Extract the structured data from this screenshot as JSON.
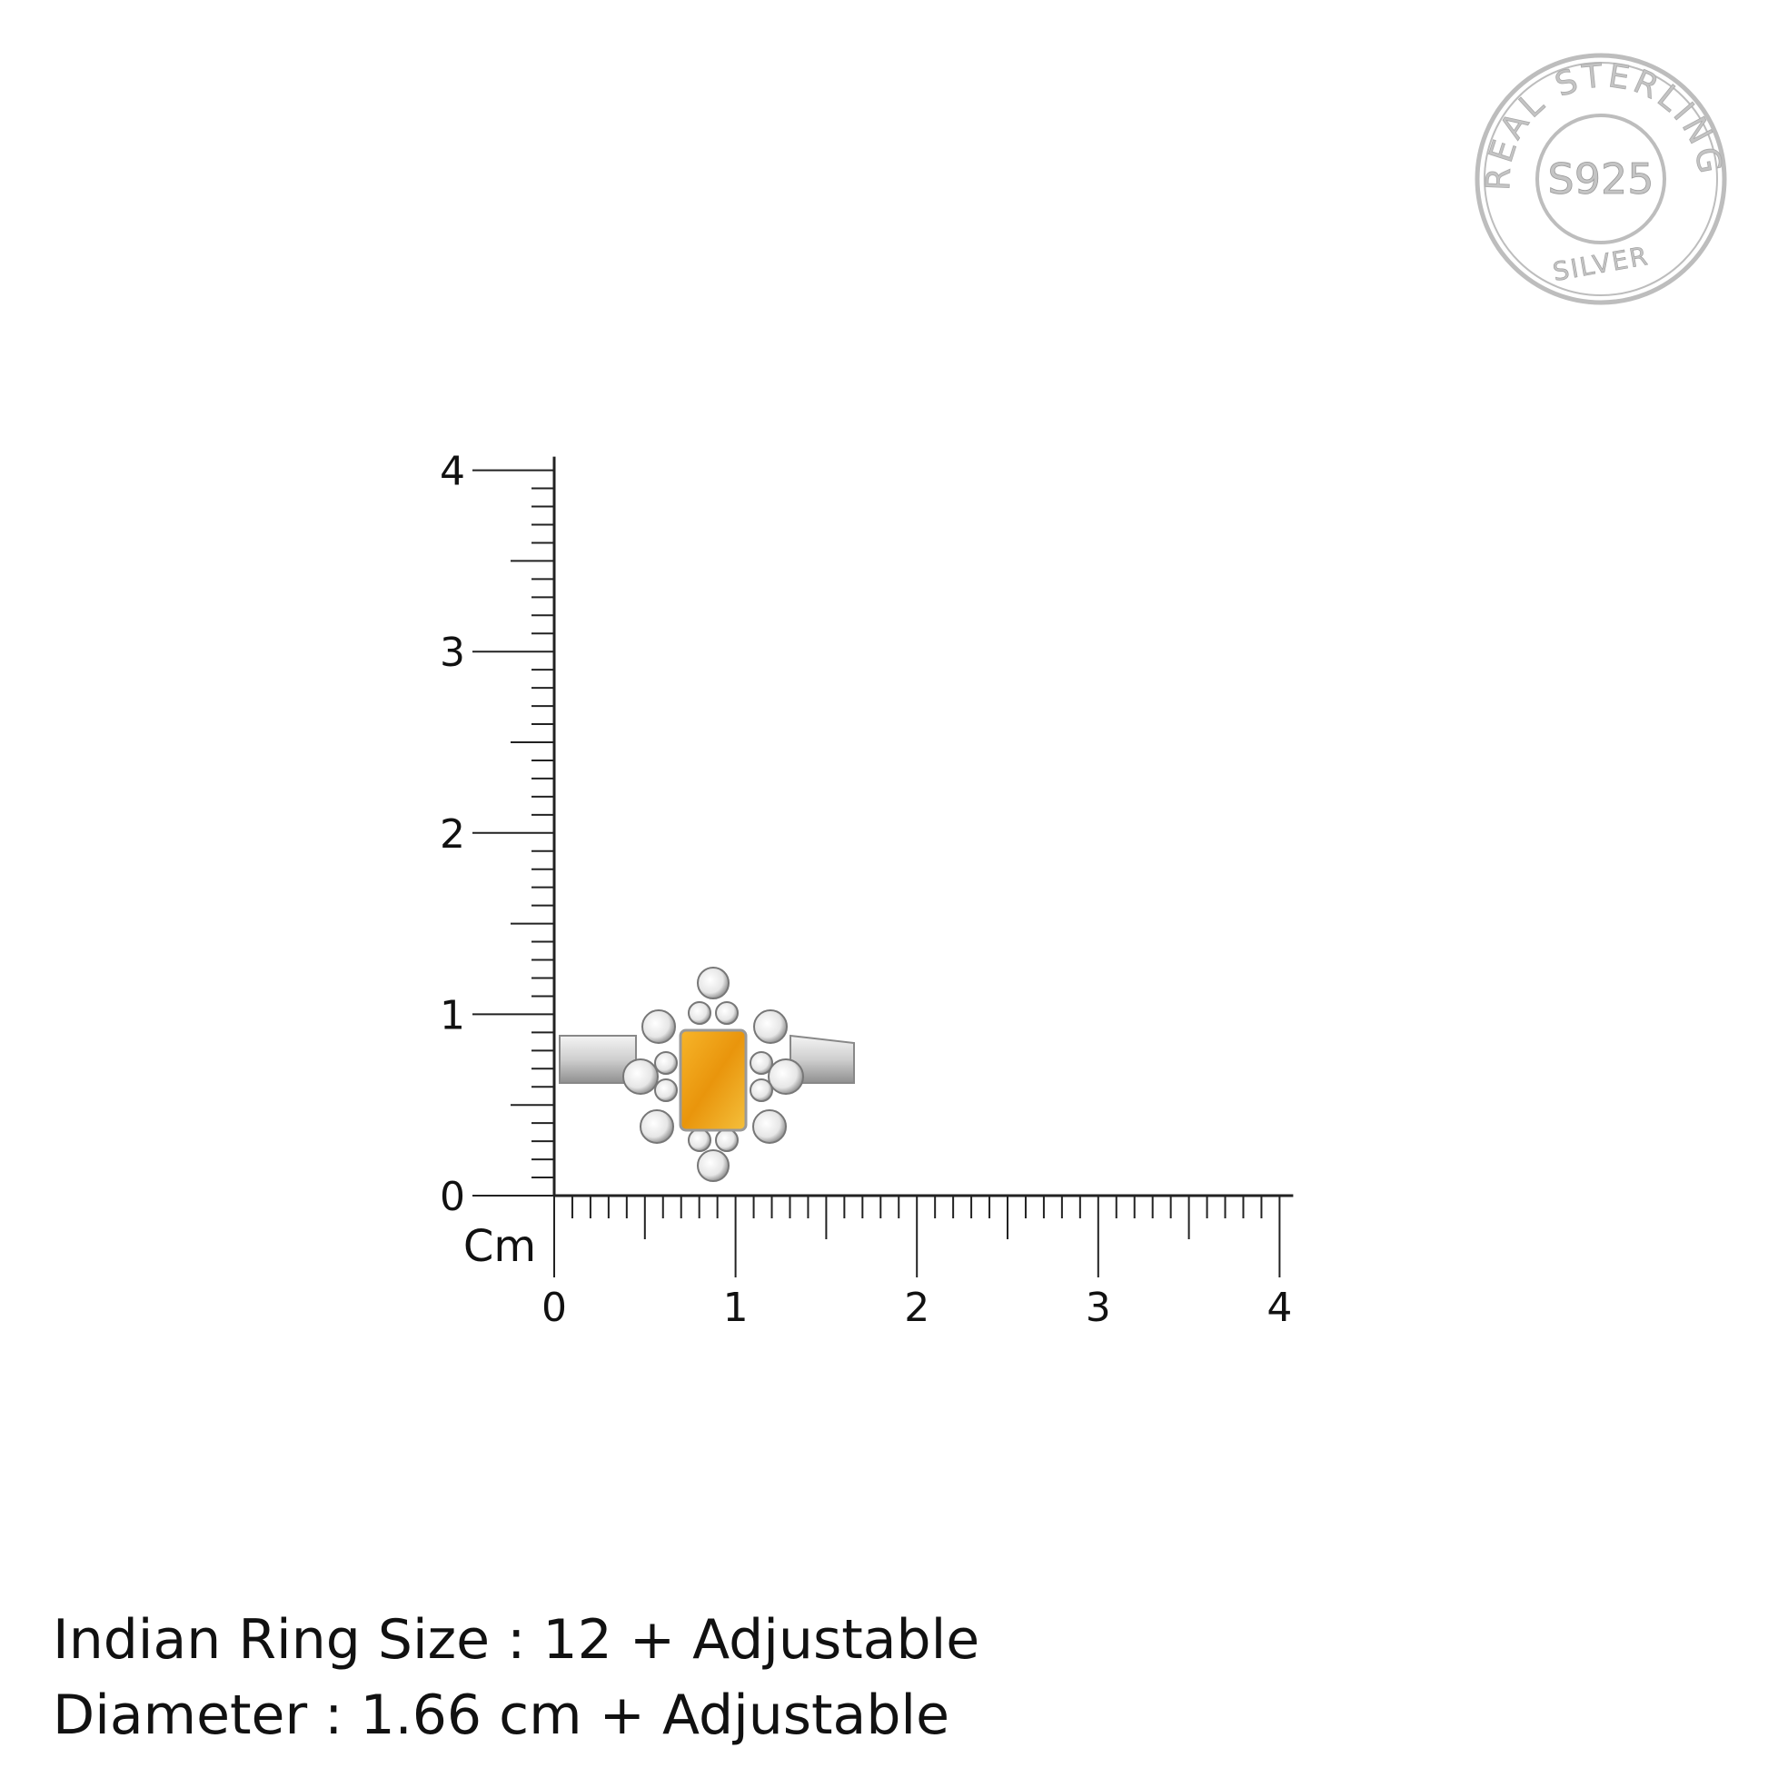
{
  "stamp": {
    "top_text": "REAL STERLING",
    "center_text": "S925",
    "bottom_text": "SILVER",
    "color": "#b8b8b8"
  },
  "ruler": {
    "unit_label": "Cm",
    "x_ticks": [
      "0",
      "1",
      "2",
      "3",
      "4"
    ],
    "y_ticks": [
      "0",
      "1",
      "2",
      "3",
      "4"
    ],
    "range_cm": [
      0,
      4
    ],
    "minor_per_cm": 10
  },
  "product": {
    "stone_color": "#f2a814",
    "metal_color": "#d9d9d9"
  },
  "info": {
    "ring_size": "Indian Ring Size : 12 + Adjustable",
    "diameter": "Diameter : 1.66 cm + Adjustable"
  }
}
